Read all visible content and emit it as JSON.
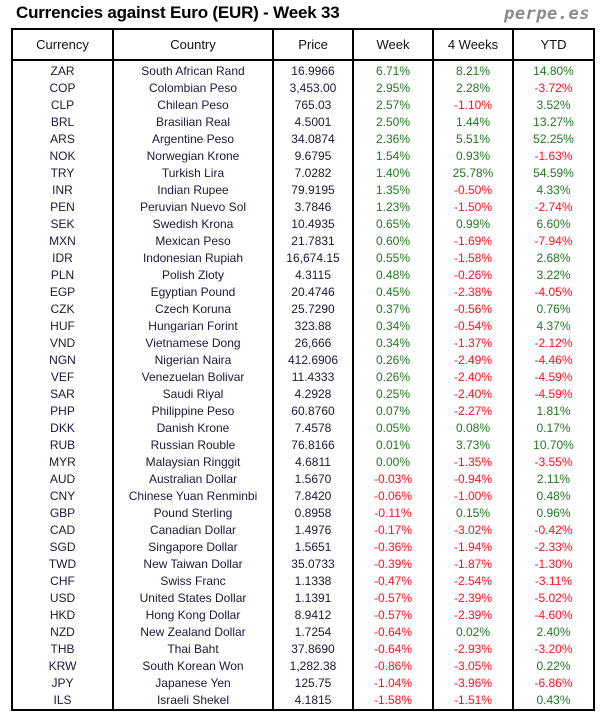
{
  "title": "Currencies against Euro (EUR) - Week 33",
  "brand": "perpe.es",
  "colors": {
    "positive": "#1f7a1f",
    "negative": "#ff1020"
  },
  "columns": [
    "Currency",
    "Country",
    "Price",
    "Week",
    "4 Weeks",
    "YTD"
  ],
  "rows": [
    [
      "ZAR",
      "South African Rand",
      "16.9966",
      "6.71%",
      "8.21%",
      "14.80%"
    ],
    [
      "COP",
      "Colombian Peso",
      "3,453.00",
      "2.95%",
      "2.28%",
      "-3.72%"
    ],
    [
      "CLP",
      "Chilean Peso",
      "765.03",
      "2.57%",
      "-1.10%",
      "3.52%"
    ],
    [
      "BRL",
      "Brasilian Real",
      "4.5001",
      "2.50%",
      "1.44%",
      "13.27%"
    ],
    [
      "ARS",
      "Argentine Peso",
      "34.0874",
      "2.36%",
      "5.51%",
      "52.25%"
    ],
    [
      "NOK",
      "Norwegian Krone",
      "9.6795",
      "1.54%",
      "0.93%",
      "-1.63%"
    ],
    [
      "TRY",
      "Turkish Lira",
      "7.0282",
      "1.40%",
      "25.78%",
      "54.59%"
    ],
    [
      "INR",
      "Indian Rupee",
      "79.9195",
      "1.35%",
      "-0.50%",
      "4.33%"
    ],
    [
      "PEN",
      "Peruvian Nuevo Sol",
      "3.7846",
      "1.23%",
      "-1.50%",
      "-2.74%"
    ],
    [
      "SEK",
      "Swedish Krona",
      "10.4935",
      "0.65%",
      "0.99%",
      "6.60%"
    ],
    [
      "MXN",
      "Mexican Peso",
      "21.7831",
      "0.60%",
      "-1.69%",
      "-7.94%"
    ],
    [
      "IDR",
      "Indonesian Rupiah",
      "16,674.15",
      "0.55%",
      "-1.58%",
      "2.68%"
    ],
    [
      "PLN",
      "Polish Zloty",
      "4.3115",
      "0.48%",
      "-0.26%",
      "3.22%"
    ],
    [
      "EGP",
      "Egyptian Pound",
      "20.4746",
      "0.45%",
      "-2.38%",
      "-4.05%"
    ],
    [
      "CZK",
      "Czech Koruna",
      "25.7290",
      "0.37%",
      "-0.56%",
      "0.76%"
    ],
    [
      "HUF",
      "Hungarian Forint",
      "323.88",
      "0.34%",
      "-0.54%",
      "4.37%"
    ],
    [
      "VND",
      "Vietnamese Dong",
      "26,666",
      "0.34%",
      "-1.37%",
      "-2.12%"
    ],
    [
      "NGN",
      "Nigerian Naira",
      "412.6906",
      "0.26%",
      "-2.49%",
      "-4.46%"
    ],
    [
      "VEF",
      "Venezuelan Bolivar",
      "11.4333",
      "0.26%",
      "-2.40%",
      "-4.59%"
    ],
    [
      "SAR",
      "Saudi Riyal",
      "4.2928",
      "0.25%",
      "-2.40%",
      "-4.59%"
    ],
    [
      "PHP",
      "Philippine Peso",
      "60.8760",
      "0.07%",
      "-2.27%",
      "1.81%"
    ],
    [
      "DKK",
      "Danish Krone",
      "7.4578",
      "0.05%",
      "0.08%",
      "0.17%"
    ],
    [
      "RUB",
      "Russian Rouble",
      "76.8166",
      "0.01%",
      "3.73%",
      "10.70%"
    ],
    [
      "MYR",
      "Malaysian Ringgit",
      "4.6811",
      "0.00%",
      "-1.35%",
      "-3.55%"
    ],
    [
      "AUD",
      "Australian Dollar",
      "1.5670",
      "-0.03%",
      "-0.94%",
      "2.11%"
    ],
    [
      "CNY",
      "Chinese Yuan Renminbi",
      "7.8420",
      "-0.06%",
      "-1.00%",
      "0.48%"
    ],
    [
      "GBP",
      "Pound Sterling",
      "0.8958",
      "-0.11%",
      "0.15%",
      "0.96%"
    ],
    [
      "CAD",
      "Canadian Dollar",
      "1.4976",
      "-0.17%",
      "-3.02%",
      "-0.42%"
    ],
    [
      "SGD",
      "Singapore Dollar",
      "1.5651",
      "-0.36%",
      "-1.94%",
      "-2.33%"
    ],
    [
      "TWD",
      "New Taiwan Dollar",
      "35.0733",
      "-0.39%",
      "-1.87%",
      "-1.30%"
    ],
    [
      "CHF",
      "Swiss Franc",
      "1.1338",
      "-0.47%",
      "-2.54%",
      "-3.11%"
    ],
    [
      "USD",
      "United States Dollar",
      "1.1391",
      "-0.57%",
      "-2.39%",
      "-5.02%"
    ],
    [
      "HKD",
      "Hong Kong Dollar",
      "8.9412",
      "-0.57%",
      "-2.39%",
      "-4.60%"
    ],
    [
      "NZD",
      "New Zealand Dollar",
      "1.7254",
      "-0.64%",
      "0.02%",
      "2.40%"
    ],
    [
      "THB",
      "Thai Baht",
      "37.8690",
      "-0.64%",
      "-2.93%",
      "-3.20%"
    ],
    [
      "KRW",
      "South Korean Won",
      "1,282.38",
      "-0.86%",
      "-3.05%",
      "0.22%"
    ],
    [
      "JPY",
      "Japanese Yen",
      "125.75",
      "-1.04%",
      "-3.96%",
      "-6.86%"
    ],
    [
      "ILS",
      "Israeli Shekel",
      "4.1815",
      "-1.58%",
      "-1.51%",
      "0.43%"
    ]
  ]
}
